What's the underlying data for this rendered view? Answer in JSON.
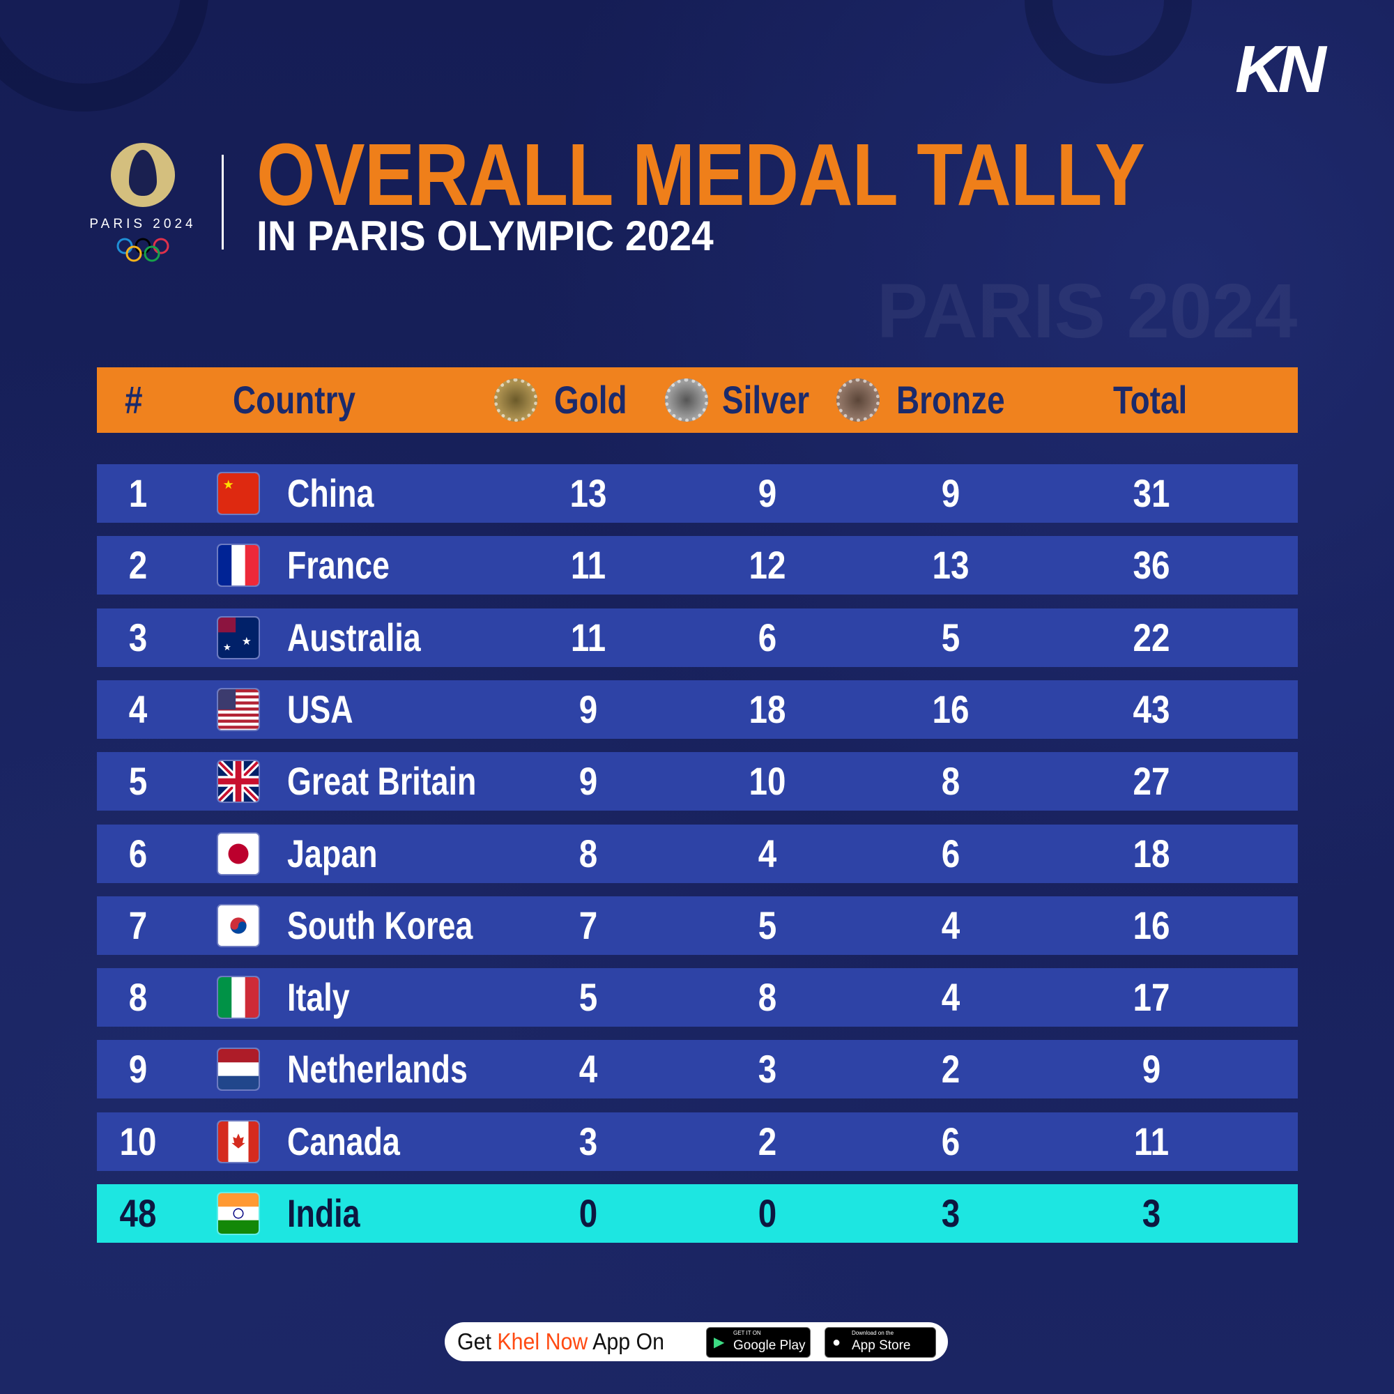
{
  "brand": {
    "logo_text": "PARIS 2024",
    "kn_logo": "KN",
    "watermark": "PARIS 2024"
  },
  "title": "OVERALL MEDAL TALLY",
  "subtitle": "IN PARIS OLYMPIC 2024",
  "colors": {
    "background": "#17205a",
    "header": "#f0821e",
    "row": "#2e43a6",
    "highlight": "#1de6e1",
    "title": "#ef7f1a"
  },
  "table": {
    "headers": {
      "rank": "#",
      "country": "Country",
      "gold": "Gold",
      "silver": "Silver",
      "bronze": "Bronze",
      "total": "Total"
    },
    "rows": [
      {
        "rank": "1",
        "country": "China",
        "flag": "cn",
        "gold": "13",
        "silver": "9",
        "bronze": "9",
        "total": "31"
      },
      {
        "rank": "2",
        "country": "France",
        "flag": "fr",
        "gold": "11",
        "silver": "12",
        "bronze": "13",
        "total": "36"
      },
      {
        "rank": "3",
        "country": "Australia",
        "flag": "au",
        "gold": "11",
        "silver": "6",
        "bronze": "5",
        "total": "22"
      },
      {
        "rank": "4",
        "country": "USA",
        "flag": "us",
        "gold": "9",
        "silver": "18",
        "bronze": "16",
        "total": "43"
      },
      {
        "rank": "5",
        "country": "Great Britain",
        "flag": "gb",
        "gold": "9",
        "silver": "10",
        "bronze": "8",
        "total": "27"
      },
      {
        "rank": "6",
        "country": "Japan",
        "flag": "jp",
        "gold": "8",
        "silver": "4",
        "bronze": "6",
        "total": "18"
      },
      {
        "rank": "7",
        "country": "South Korea",
        "flag": "kr",
        "gold": "7",
        "silver": "5",
        "bronze": "4",
        "total": "16"
      },
      {
        "rank": "8",
        "country": "Italy",
        "flag": "it",
        "gold": "5",
        "silver": "8",
        "bronze": "4",
        "total": "17"
      },
      {
        "rank": "9",
        "country": "Netherlands",
        "flag": "nl",
        "gold": "4",
        "silver": "3",
        "bronze": "2",
        "total": "9"
      },
      {
        "rank": "10",
        "country": "Canada",
        "flag": "ca",
        "gold": "3",
        "silver": "2",
        "bronze": "6",
        "total": "11"
      },
      {
        "rank": "48",
        "country": "India",
        "flag": "in",
        "gold": "0",
        "silver": "0",
        "bronze": "3",
        "total": "3",
        "highlight": true
      }
    ]
  },
  "footer": {
    "get": "Get",
    "brand": "Khel Now",
    "app_on": "App On",
    "google_small": "GET IT ON",
    "google": "Google Play",
    "apple_small": "Download on the",
    "apple": "App Store"
  }
}
